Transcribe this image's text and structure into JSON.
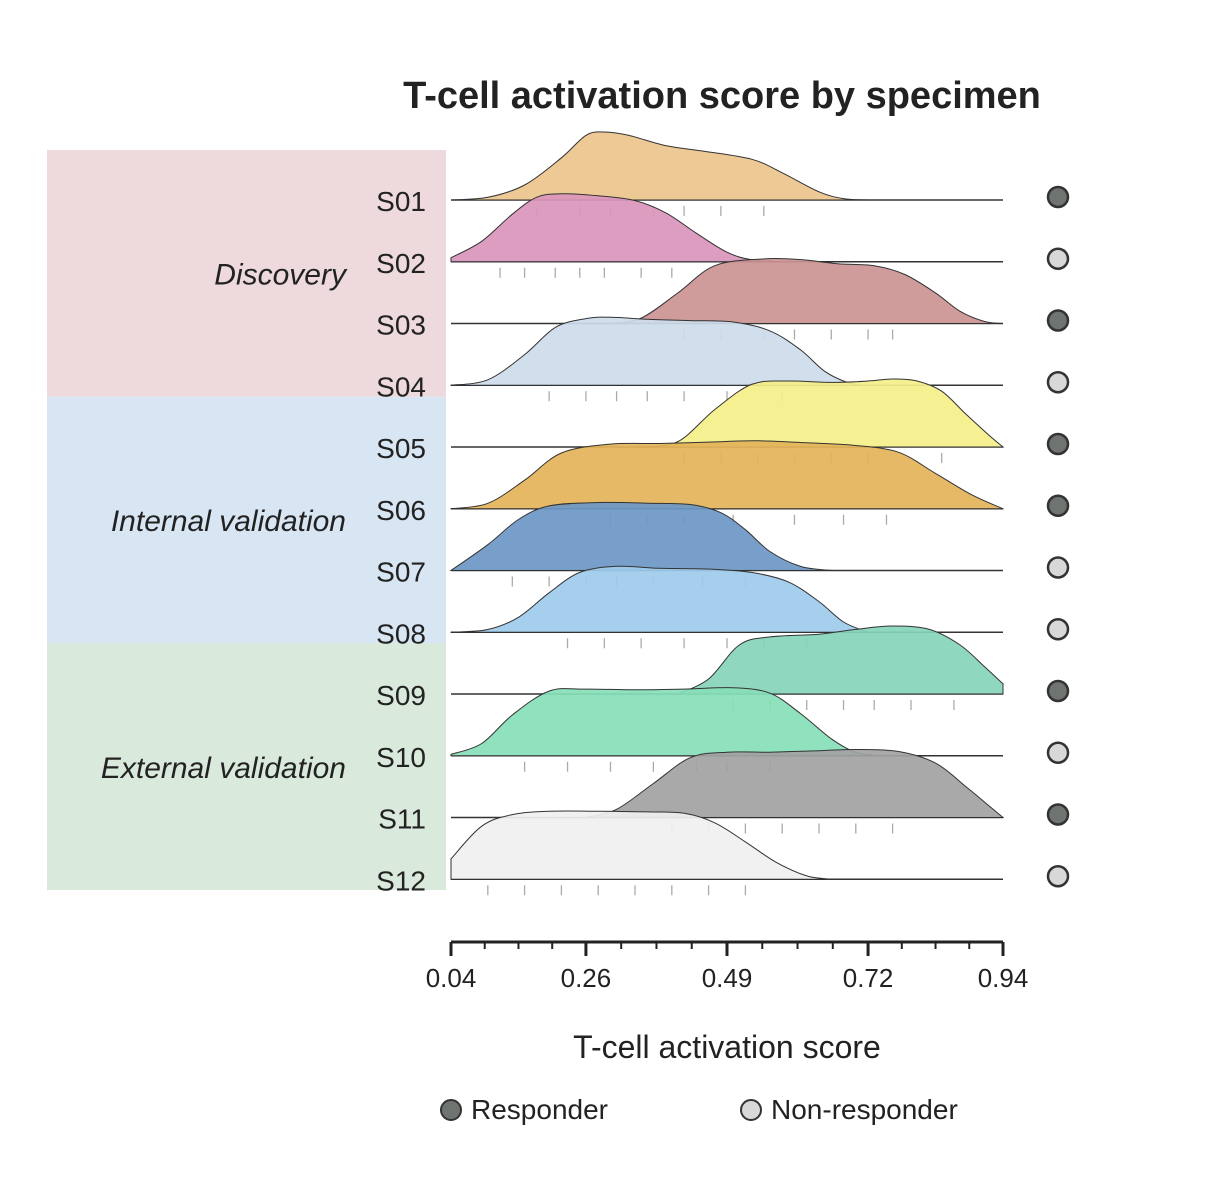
{
  "chart_data": {
    "type": "ridgeline",
    "title": "T-cell activation score by specimen",
    "xlabel": "T-cell activation score",
    "xlim": [
      0.04,
      0.94
    ],
    "xticks": [
      "0.04",
      "0.26",
      "0.49",
      "0.72",
      "0.94"
    ],
    "groups": [
      {
        "name": "Discovery",
        "color": "#eedadc",
        "rows": [
          "S01",
          "S02",
          "S03",
          "S04"
        ]
      },
      {
        "name": "Internal validation",
        "color": "#d8e5f2",
        "rows": [
          "S05",
          "S06",
          "S07",
          "S08"
        ]
      },
      {
        "name": "External validation",
        "color": "#d9e9dc",
        "rows": [
          "S09",
          "S10",
          "S11",
          "S12"
        ]
      }
    ],
    "legend": [
      {
        "label": "Responder",
        "color": "#707470"
      },
      {
        "label": "Non-responder",
        "color": "#d8d8d8"
      }
    ],
    "series": [
      {
        "name": "S01",
        "color": "#ecc48d",
        "response": "Responder",
        "density": [
          [
            0.04,
            0
          ],
          [
            0.1,
            0.04
          ],
          [
            0.16,
            0.22
          ],
          [
            0.22,
            0.62
          ],
          [
            0.26,
            0.95
          ],
          [
            0.29,
            1.0
          ],
          [
            0.33,
            0.95
          ],
          [
            0.39,
            0.8
          ],
          [
            0.45,
            0.72
          ],
          [
            0.53,
            0.6
          ],
          [
            0.58,
            0.4
          ],
          [
            0.64,
            0.12
          ],
          [
            0.68,
            0.02
          ],
          [
            0.72,
            0
          ]
        ],
        "ticks": [
          0.18,
          0.25,
          0.3,
          0.37,
          0.42,
          0.48,
          0.55
        ]
      },
      {
        "name": "S02",
        "color": "#da95bb",
        "response": "Non-responder",
        "density": [
          [
            0.04,
            0.06
          ],
          [
            0.09,
            0.3
          ],
          [
            0.14,
            0.7
          ],
          [
            0.18,
            0.95
          ],
          [
            0.22,
            1.0
          ],
          [
            0.28,
            0.97
          ],
          [
            0.34,
            0.9
          ],
          [
            0.39,
            0.72
          ],
          [
            0.44,
            0.42
          ],
          [
            0.49,
            0.14
          ],
          [
            0.53,
            0.03
          ],
          [
            0.58,
            0
          ]
        ],
        "ticks": [
          0.12,
          0.16,
          0.21,
          0.25,
          0.29,
          0.35,
          0.4
        ]
      },
      {
        "name": "S03",
        "color": "#cb9392",
        "response": "Responder",
        "density": [
          [
            0.3,
            0
          ],
          [
            0.35,
            0.08
          ],
          [
            0.41,
            0.45
          ],
          [
            0.47,
            0.85
          ],
          [
            0.55,
            0.95
          ],
          [
            0.61,
            0.94
          ],
          [
            0.67,
            0.88
          ],
          [
            0.73,
            0.85
          ],
          [
            0.78,
            0.72
          ],
          [
            0.83,
            0.45
          ],
          [
            0.87,
            0.18
          ],
          [
            0.91,
            0.03
          ],
          [
            0.94,
            0
          ]
        ],
        "ticks": [
          0.42,
          0.48,
          0.55,
          0.6,
          0.66,
          0.72,
          0.76
        ]
      },
      {
        "name": "S04",
        "color": "#cddcec",
        "response": "Non-responder",
        "density": [
          [
            0.04,
            0
          ],
          [
            0.1,
            0.08
          ],
          [
            0.16,
            0.45
          ],
          [
            0.21,
            0.85
          ],
          [
            0.26,
            0.98
          ],
          [
            0.3,
            1.0
          ],
          [
            0.36,
            0.97
          ],
          [
            0.43,
            0.95
          ],
          [
            0.5,
            0.93
          ],
          [
            0.56,
            0.8
          ],
          [
            0.61,
            0.52
          ],
          [
            0.65,
            0.2
          ],
          [
            0.69,
            0.03
          ],
          [
            0.72,
            0
          ]
        ],
        "ticks": [
          0.2,
          0.26,
          0.31,
          0.36,
          0.42,
          0.49,
          0.58
        ]
      },
      {
        "name": "S05",
        "color": "#f4ef88",
        "response": "Responder",
        "density": [
          [
            0.35,
            0
          ],
          [
            0.41,
            0.08
          ],
          [
            0.47,
            0.55
          ],
          [
            0.53,
            0.92
          ],
          [
            0.59,
            0.97
          ],
          [
            0.66,
            0.95
          ],
          [
            0.72,
            0.97
          ],
          [
            0.76,
            1.0
          ],
          [
            0.8,
            0.97
          ],
          [
            0.84,
            0.82
          ],
          [
            0.88,
            0.48
          ],
          [
            0.92,
            0.15
          ],
          [
            0.94,
            0
          ]
        ],
        "ticks": [
          0.42,
          0.48,
          0.54,
          0.6,
          0.66,
          0.72,
          0.84
        ]
      },
      {
        "name": "S06",
        "color": "#e4b359",
        "response": "Responder",
        "density": [
          [
            0.04,
            0
          ],
          [
            0.1,
            0.08
          ],
          [
            0.16,
            0.42
          ],
          [
            0.22,
            0.82
          ],
          [
            0.3,
            0.95
          ],
          [
            0.38,
            0.96
          ],
          [
            0.46,
            0.98
          ],
          [
            0.54,
            1.0
          ],
          [
            0.62,
            0.97
          ],
          [
            0.7,
            0.93
          ],
          [
            0.77,
            0.83
          ],
          [
            0.83,
            0.52
          ],
          [
            0.89,
            0.2
          ],
          [
            0.94,
            0
          ]
        ],
        "ticks": [
          0.3,
          0.36,
          0.42,
          0.5,
          0.6,
          0.68,
          0.75
        ]
      },
      {
        "name": "S07",
        "color": "#6c97c6",
        "response": "Non-responder",
        "density": [
          [
            0.04,
            0
          ],
          [
            0.1,
            0.38
          ],
          [
            0.15,
            0.75
          ],
          [
            0.2,
            0.95
          ],
          [
            0.28,
            1.0
          ],
          [
            0.36,
            0.99
          ],
          [
            0.43,
            0.97
          ],
          [
            0.48,
            0.85
          ],
          [
            0.52,
            0.6
          ],
          [
            0.56,
            0.28
          ],
          [
            0.61,
            0.06
          ],
          [
            0.66,
            0
          ]
        ],
        "ticks": [
          0.14,
          0.2,
          0.26,
          0.31,
          0.37,
          0.45,
          0.52
        ]
      },
      {
        "name": "S08",
        "color": "#9ecbeb",
        "response": "Non-responder",
        "density": [
          [
            0.04,
            0
          ],
          [
            0.1,
            0.04
          ],
          [
            0.15,
            0.22
          ],
          [
            0.2,
            0.58
          ],
          [
            0.25,
            0.88
          ],
          [
            0.31,
            0.97
          ],
          [
            0.38,
            0.94
          ],
          [
            0.46,
            0.93
          ],
          [
            0.53,
            0.88
          ],
          [
            0.59,
            0.74
          ],
          [
            0.64,
            0.45
          ],
          [
            0.68,
            0.15
          ],
          [
            0.72,
            0
          ]
        ],
        "ticks": [
          0.23,
          0.29,
          0.35,
          0.42,
          0.49,
          0.55,
          0.62
        ]
      },
      {
        "name": "S09",
        "color": "#87d4bb",
        "response": "Responder",
        "density": [
          [
            0.41,
            0
          ],
          [
            0.46,
            0.22
          ],
          [
            0.51,
            0.72
          ],
          [
            0.56,
            0.84
          ],
          [
            0.64,
            0.88
          ],
          [
            0.7,
            0.95
          ],
          [
            0.76,
            1.0
          ],
          [
            0.82,
            0.95
          ],
          [
            0.87,
            0.72
          ],
          [
            0.91,
            0.4
          ],
          [
            0.94,
            0.15
          ]
        ],
        "ticks": [
          0.5,
          0.56,
          0.62,
          0.68,
          0.73,
          0.79,
          0.86
        ]
      },
      {
        "name": "S10",
        "color": "#87deb8",
        "response": "Non-responder",
        "density": [
          [
            0.04,
            0.02
          ],
          [
            0.09,
            0.18
          ],
          [
            0.14,
            0.6
          ],
          [
            0.2,
            0.95
          ],
          [
            0.26,
            0.98
          ],
          [
            0.34,
            0.97
          ],
          [
            0.42,
            0.98
          ],
          [
            0.5,
            1.0
          ],
          [
            0.56,
            0.92
          ],
          [
            0.61,
            0.62
          ],
          [
            0.66,
            0.25
          ],
          [
            0.7,
            0.05
          ],
          [
            0.74,
            0
          ]
        ],
        "ticks": [
          0.16,
          0.23,
          0.3,
          0.37,
          0.44,
          0.49,
          0.56
        ]
      },
      {
        "name": "S11",
        "color": "#a2a2a2",
        "response": "Responder",
        "density": [
          [
            0.26,
            0
          ],
          [
            0.31,
            0.12
          ],
          [
            0.37,
            0.5
          ],
          [
            0.43,
            0.88
          ],
          [
            0.49,
            0.96
          ],
          [
            0.56,
            0.96
          ],
          [
            0.63,
            0.98
          ],
          [
            0.7,
            1.0
          ],
          [
            0.77,
            0.97
          ],
          [
            0.83,
            0.8
          ],
          [
            0.88,
            0.45
          ],
          [
            0.92,
            0.15
          ],
          [
            0.94,
            0
          ]
        ],
        "ticks": [
          0.4,
          0.46,
          0.52,
          0.58,
          0.64,
          0.7,
          0.76
        ]
      },
      {
        "name": "S12",
        "color": "#f0f0f0",
        "response": "Non-responder",
        "density": [
          [
            0.04,
            0.3
          ],
          [
            0.09,
            0.78
          ],
          [
            0.14,
            0.95
          ],
          [
            0.2,
            1.0
          ],
          [
            0.28,
            1.0
          ],
          [
            0.36,
            0.99
          ],
          [
            0.42,
            0.97
          ],
          [
            0.47,
            0.83
          ],
          [
            0.52,
            0.55
          ],
          [
            0.57,
            0.25
          ],
          [
            0.62,
            0.05
          ],
          [
            0.66,
            0
          ]
        ],
        "ticks": [
          0.1,
          0.16,
          0.22,
          0.28,
          0.34,
          0.4,
          0.46,
          0.52
        ]
      }
    ]
  }
}
